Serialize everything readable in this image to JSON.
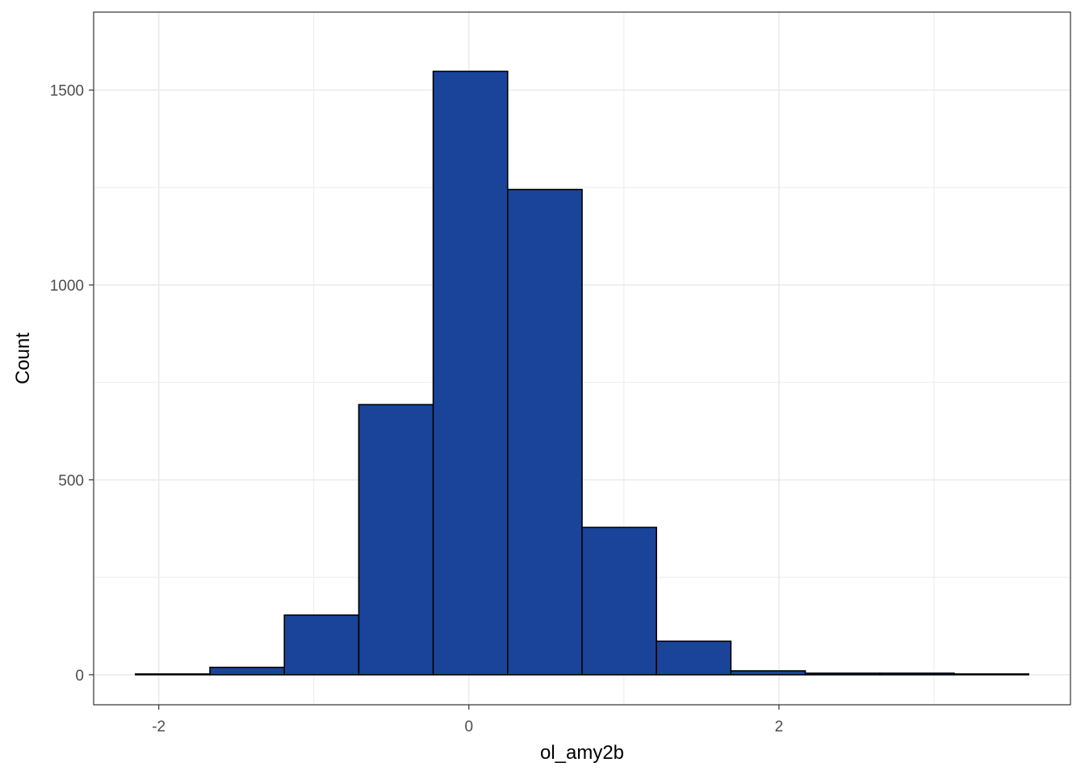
{
  "chart_data": {
    "type": "bar",
    "subtype": "histogram",
    "title": "",
    "xlabel": "ol_amy2b",
    "ylabel": "Count",
    "xlim": [
      -2.42,
      3.88
    ],
    "ylim": [
      -77,
      1700
    ],
    "x_ticks": [
      -2,
      0,
      2
    ],
    "x_tick_labels": [
      "-2",
      "0",
      "2"
    ],
    "y_ticks": [
      0,
      500,
      1000,
      1500
    ],
    "y_tick_labels": [
      "0",
      "500",
      "1000",
      "1500"
    ],
    "grid": true,
    "bin_width": 0.48,
    "bins": [
      {
        "x0": -2.15,
        "x1": -1.67,
        "count": 2
      },
      {
        "x0": -1.67,
        "x1": -1.19,
        "count": 19
      },
      {
        "x0": -1.19,
        "x1": -0.71,
        "count": 153
      },
      {
        "x0": -0.71,
        "x1": -0.23,
        "count": 693
      },
      {
        "x0": -0.23,
        "x1": 0.25,
        "count": 1548
      },
      {
        "x0": 0.25,
        "x1": 0.73,
        "count": 1245
      },
      {
        "x0": 0.73,
        "x1": 1.21,
        "count": 378
      },
      {
        "x0": 1.21,
        "x1": 1.69,
        "count": 86
      },
      {
        "x0": 1.69,
        "x1": 2.17,
        "count": 10
      },
      {
        "x0": 2.17,
        "x1": 2.65,
        "count": 4
      },
      {
        "x0": 2.65,
        "x1": 3.13,
        "count": 4
      },
      {
        "x0": 3.13,
        "x1": 3.61,
        "count": 2
      }
    ],
    "colors": {
      "fill": "#1a4499",
      "stroke": "#000000",
      "grid": "#ebebeb",
      "panel_border": "#333333"
    }
  }
}
